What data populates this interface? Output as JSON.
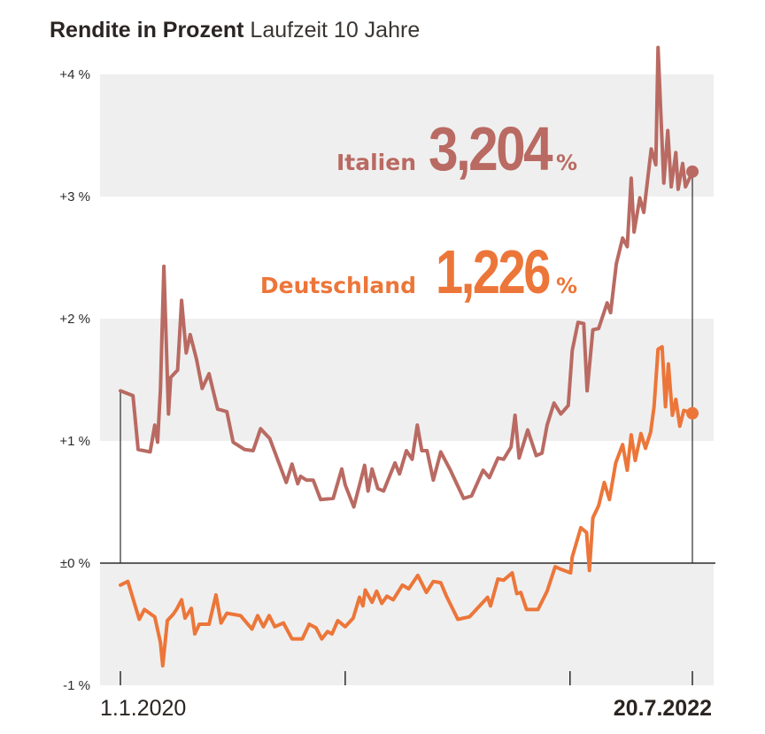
{
  "title": {
    "bold": "Rendite in Prozent",
    "sub": "Laufzeit 10 Jahre"
  },
  "colors": {
    "italy": "#b96a62",
    "germany": "#ec7639",
    "band": "#efefef",
    "axis": "#2b2b2b"
  },
  "annotations": {
    "italy": {
      "name": "Italien",
      "value": "3,204",
      "pct": "%"
    },
    "germany": {
      "name": "Deutschland",
      "value": "1,226",
      "pct": "%"
    }
  },
  "chart_data": {
    "type": "line",
    "title": "Rendite in Prozent Laufzeit 10 Jahre",
    "xlabel": "",
    "ylabel": "",
    "ylim": [
      -1,
      4.2
    ],
    "y_ticks": [
      {
        "value": 4,
        "label": "+4 %"
      },
      {
        "value": 3,
        "label": "+3 %"
      },
      {
        "value": 2,
        "label": "+2 %"
      },
      {
        "value": 1,
        "label": "+1 %"
      },
      {
        "value": 0,
        "label": "±0 %"
      },
      {
        "value": -1,
        "label": "-1 %"
      }
    ],
    "x_ticks": [
      {
        "t": 0.0,
        "label": "1.1.2020",
        "bold": false
      },
      {
        "t": 0.393,
        "label": "",
        "bold": false
      },
      {
        "t": 0.786,
        "label": "",
        "bold": false
      },
      {
        "t": 1.0,
        "label": "20.7.2022",
        "bold": true
      }
    ],
    "series": [
      {
        "name": "Italien",
        "color": "#b96a62",
        "final_value": 3.204,
        "points": [
          [
            0.0,
            1.41
          ],
          [
            0.022,
            1.37
          ],
          [
            0.031,
            0.93
          ],
          [
            0.052,
            0.91
          ],
          [
            0.06,
            1.13
          ],
          [
            0.065,
            0.99
          ],
          [
            0.07,
            1.42
          ],
          [
            0.076,
            2.43
          ],
          [
            0.084,
            1.22
          ],
          [
            0.088,
            1.52
          ],
          [
            0.1,
            1.58
          ],
          [
            0.107,
            2.15
          ],
          [
            0.115,
            1.72
          ],
          [
            0.122,
            1.87
          ],
          [
            0.133,
            1.67
          ],
          [
            0.143,
            1.43
          ],
          [
            0.155,
            1.55
          ],
          [
            0.17,
            1.26
          ],
          [
            0.186,
            1.24
          ],
          [
            0.197,
            0.99
          ],
          [
            0.217,
            0.93
          ],
          [
            0.232,
            0.92
          ],
          [
            0.245,
            1.1
          ],
          [
            0.261,
            1.02
          ],
          [
            0.29,
            0.66
          ],
          [
            0.3,
            0.81
          ],
          [
            0.31,
            0.65
          ],
          [
            0.315,
            0.71
          ],
          [
            0.325,
            0.68
          ],
          [
            0.337,
            0.68
          ],
          [
            0.35,
            0.52
          ],
          [
            0.372,
            0.53
          ],
          [
            0.387,
            0.77
          ],
          [
            0.393,
            0.64
          ],
          [
            0.408,
            0.46
          ],
          [
            0.427,
            0.8
          ],
          [
            0.433,
            0.59
          ],
          [
            0.44,
            0.77
          ],
          [
            0.45,
            0.61
          ],
          [
            0.46,
            0.59
          ],
          [
            0.48,
            0.82
          ],
          [
            0.488,
            0.73
          ],
          [
            0.5,
            0.92
          ],
          [
            0.51,
            0.85
          ],
          [
            0.519,
            1.13
          ],
          [
            0.527,
            0.92
          ],
          [
            0.536,
            0.92
          ],
          [
            0.547,
            0.68
          ],
          [
            0.56,
            0.91
          ],
          [
            0.577,
            0.76
          ],
          [
            0.6,
            0.53
          ],
          [
            0.614,
            0.55
          ],
          [
            0.634,
            0.76
          ],
          [
            0.645,
            0.7
          ],
          [
            0.66,
            0.86
          ],
          [
            0.67,
            0.85
          ],
          [
            0.683,
            0.95
          ],
          [
            0.69,
            1.21
          ],
          [
            0.697,
            0.86
          ],
          [
            0.712,
            1.09
          ],
          [
            0.727,
            0.88
          ],
          [
            0.737,
            0.9
          ],
          [
            0.746,
            1.13
          ],
          [
            0.758,
            1.31
          ],
          [
            0.77,
            1.22
          ],
          [
            0.783,
            1.29
          ],
          [
            0.79,
            1.74
          ],
          [
            0.8,
            1.97
          ],
          [
            0.81,
            1.96
          ],
          [
            0.816,
            1.41
          ],
          [
            0.826,
            1.91
          ],
          [
            0.836,
            1.92
          ],
          [
            0.851,
            2.13
          ],
          [
            0.857,
            2.05
          ],
          [
            0.867,
            2.45
          ],
          [
            0.878,
            2.66
          ],
          [
            0.886,
            2.59
          ],
          [
            0.893,
            3.15
          ],
          [
            0.898,
            2.71
          ],
          [
            0.908,
            2.99
          ],
          [
            0.915,
            2.87
          ],
          [
            0.928,
            3.39
          ],
          [
            0.936,
            3.26
          ],
          [
            0.94,
            4.22
          ],
          [
            0.95,
            3.11
          ],
          [
            0.957,
            3.54
          ],
          [
            0.963,
            3.08
          ],
          [
            0.971,
            3.36
          ],
          [
            0.975,
            3.06
          ],
          [
            0.983,
            3.27
          ],
          [
            0.988,
            3.08
          ],
          [
            1.0,
            3.2
          ]
        ]
      },
      {
        "name": "Deutschland",
        "color": "#ec7639",
        "final_value": 1.226,
        "points": [
          [
            0.0,
            -0.18
          ],
          [
            0.013,
            -0.15
          ],
          [
            0.033,
            -0.46
          ],
          [
            0.042,
            -0.38
          ],
          [
            0.06,
            -0.44
          ],
          [
            0.07,
            -0.65
          ],
          [
            0.074,
            -0.84
          ],
          [
            0.082,
            -0.47
          ],
          [
            0.092,
            -0.42
          ],
          [
            0.098,
            -0.38
          ],
          [
            0.107,
            -0.3
          ],
          [
            0.113,
            -0.45
          ],
          [
            0.124,
            -0.37
          ],
          [
            0.13,
            -0.58
          ],
          [
            0.138,
            -0.5
          ],
          [
            0.155,
            -0.5
          ],
          [
            0.167,
            -0.26
          ],
          [
            0.176,
            -0.49
          ],
          [
            0.186,
            -0.41
          ],
          [
            0.21,
            -0.43
          ],
          [
            0.23,
            -0.54
          ],
          [
            0.24,
            -0.43
          ],
          [
            0.25,
            -0.52
          ],
          [
            0.26,
            -0.43
          ],
          [
            0.27,
            -0.52
          ],
          [
            0.285,
            -0.49
          ],
          [
            0.3,
            -0.62
          ],
          [
            0.318,
            -0.62
          ],
          [
            0.33,
            -0.5
          ],
          [
            0.342,
            -0.53
          ],
          [
            0.352,
            -0.62
          ],
          [
            0.362,
            -0.56
          ],
          [
            0.37,
            -0.58
          ],
          [
            0.38,
            -0.47
          ],
          [
            0.393,
            -0.52
          ],
          [
            0.407,
            -0.45
          ],
          [
            0.418,
            -0.28
          ],
          [
            0.424,
            -0.35
          ],
          [
            0.428,
            -0.22
          ],
          [
            0.44,
            -0.32
          ],
          [
            0.448,
            -0.23
          ],
          [
            0.457,
            -0.33
          ],
          [
            0.466,
            -0.27
          ],
          [
            0.477,
            -0.3
          ],
          [
            0.493,
            -0.18
          ],
          [
            0.504,
            -0.21
          ],
          [
            0.52,
            -0.1
          ],
          [
            0.535,
            -0.24
          ],
          [
            0.547,
            -0.15
          ],
          [
            0.56,
            -0.16
          ],
          [
            0.57,
            -0.27
          ],
          [
            0.59,
            -0.46
          ],
          [
            0.61,
            -0.44
          ],
          [
            0.642,
            -0.28
          ],
          [
            0.647,
            -0.35
          ],
          [
            0.66,
            -0.13
          ],
          [
            0.67,
            -0.14
          ],
          [
            0.685,
            -0.08
          ],
          [
            0.693,
            -0.25
          ],
          [
            0.7,
            -0.24
          ],
          [
            0.71,
            -0.38
          ],
          [
            0.73,
            -0.38
          ],
          [
            0.746,
            -0.23
          ],
          [
            0.76,
            -0.03
          ],
          [
            0.77,
            -0.05
          ],
          [
            0.787,
            -0.08
          ],
          [
            0.79,
            0.05
          ],
          [
            0.805,
            0.29
          ],
          [
            0.815,
            0.25
          ],
          [
            0.82,
            -0.06
          ],
          [
            0.826,
            0.37
          ],
          [
            0.836,
            0.47
          ],
          [
            0.846,
            0.66
          ],
          [
            0.855,
            0.52
          ],
          [
            0.866,
            0.82
          ],
          [
            0.878,
            0.97
          ],
          [
            0.886,
            0.76
          ],
          [
            0.893,
            1.05
          ],
          [
            0.9,
            0.84
          ],
          [
            0.91,
            1.06
          ],
          [
            0.918,
            0.94
          ],
          [
            0.927,
            1.07
          ],
          [
            0.933,
            1.28
          ],
          [
            0.94,
            1.75
          ],
          [
            0.947,
            1.77
          ],
          [
            0.953,
            1.28
          ],
          [
            0.958,
            1.63
          ],
          [
            0.965,
            1.21
          ],
          [
            0.971,
            1.34
          ],
          [
            0.978,
            1.12
          ],
          [
            0.985,
            1.25
          ],
          [
            1.0,
            1.23
          ]
        ]
      }
    ]
  }
}
